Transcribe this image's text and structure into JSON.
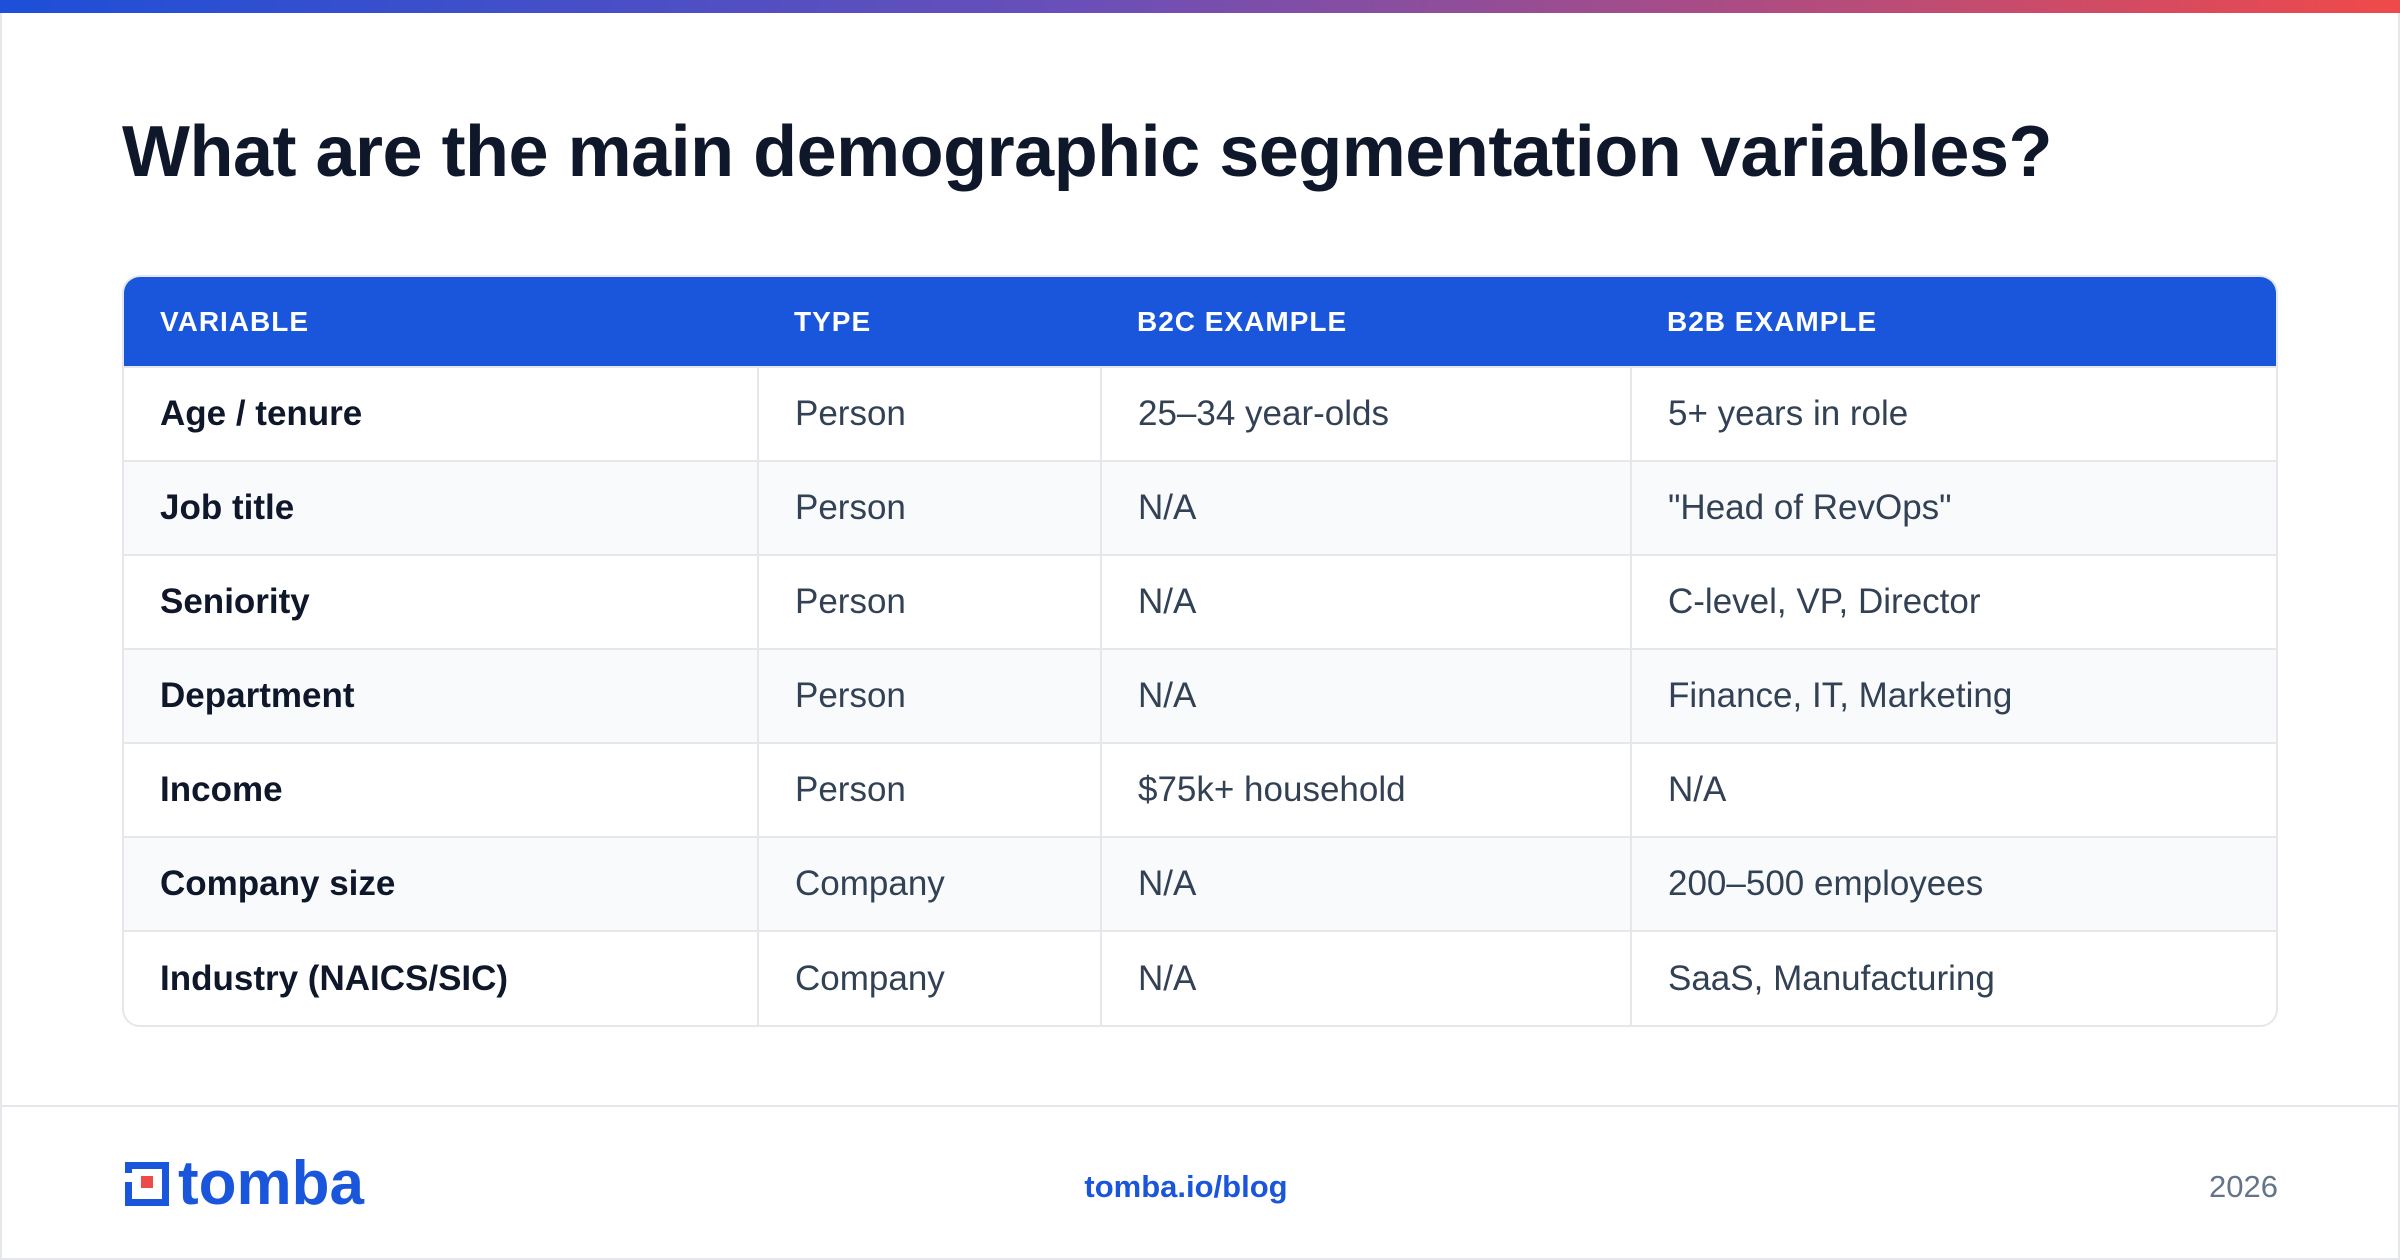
{
  "title": "What are the main demographic segmentation variables?",
  "table": {
    "headers": [
      "VARIABLE",
      "TYPE",
      "B2C EXAMPLE",
      "B2B EXAMPLE"
    ],
    "rows": [
      [
        "Age / tenure",
        "Person",
        "25–34 year-olds",
        "5+ years in role"
      ],
      [
        "Job title",
        "Person",
        "N/A",
        "\"Head of RevOps\""
      ],
      [
        "Seniority",
        "Person",
        "N/A",
        "C-level, VP, Director"
      ],
      [
        "Department",
        "Person",
        "N/A",
        "Finance, IT, Marketing"
      ],
      [
        "Income",
        "Person",
        "$75k+ household",
        "N/A"
      ],
      [
        "Company size",
        "Company",
        "N/A",
        "200–500 employees"
      ],
      [
        "Industry (NAICS/SIC)",
        "Company",
        "N/A",
        "SaaS, Manufacturing"
      ]
    ]
  },
  "footer": {
    "logo_text": "tomba",
    "logo_icon": "tomba-logo-icon",
    "link": "tomba.io/blog",
    "year": "2026"
  },
  "colors": {
    "brand_blue": "#1a56db",
    "accent_red": "#ef4a4a"
  }
}
